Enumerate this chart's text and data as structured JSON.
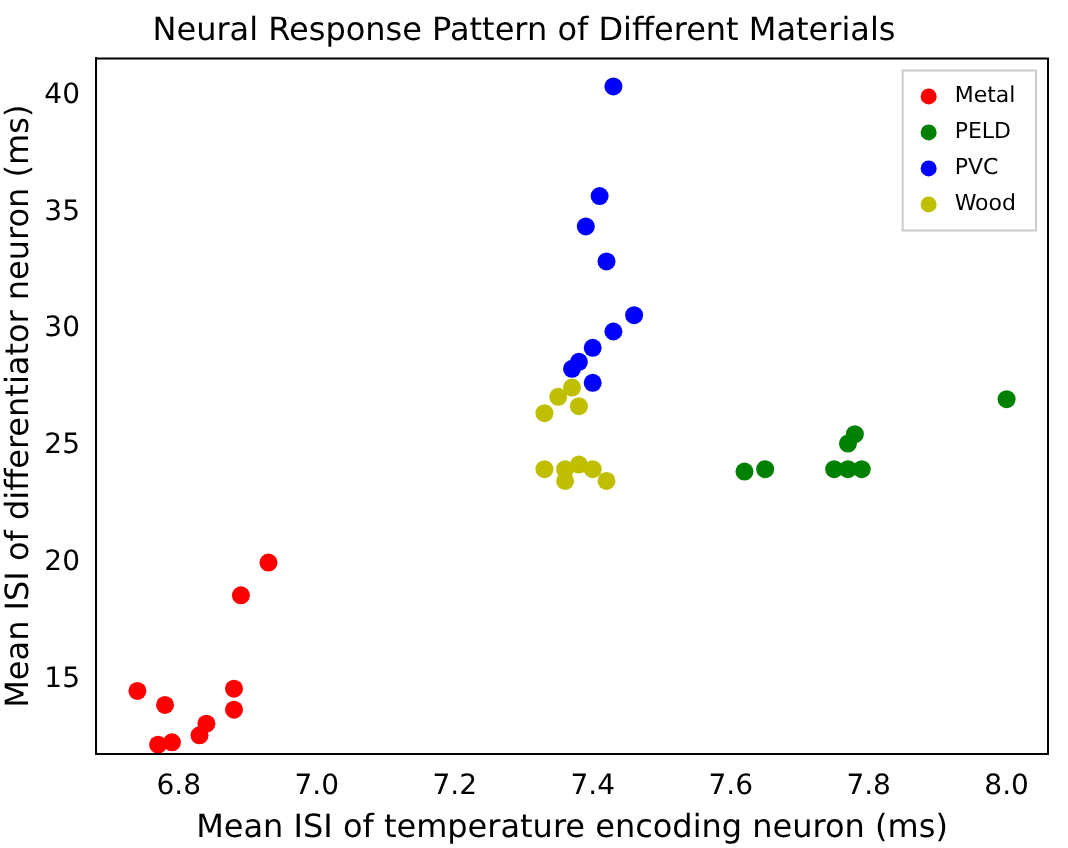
{
  "chart_data": {
    "type": "scatter",
    "title": "Neural Response Pattern of Different Materials",
    "xlabel": "Mean ISI of temperature encoding neuron (ms)",
    "ylabel": "Mean ISI of differentiator neuron (ms)",
    "xlim": [
      6.68,
      8.06
    ],
    "ylim": [
      11.8,
      41.6
    ],
    "xticks": [
      {
        "value": 6.8,
        "label": "6.8"
      },
      {
        "value": 7.0,
        "label": "7.0"
      },
      {
        "value": 7.2,
        "label": "7.2"
      },
      {
        "value": 7.4,
        "label": "7.4"
      },
      {
        "value": 7.6,
        "label": "7.6"
      },
      {
        "value": 7.8,
        "label": "7.8"
      },
      {
        "value": 8.0,
        "label": "8.0"
      }
    ],
    "yticks": [
      15,
      20,
      25,
      30,
      35,
      40
    ],
    "legend": "top right",
    "marker": "circle",
    "grid": false,
    "series": [
      {
        "name": "Metal",
        "color": "#ff0000",
        "x": [
          6.74,
          6.78,
          6.77,
          6.79,
          6.83,
          6.84,
          6.88,
          6.88,
          6.89,
          6.93
        ],
        "values": [
          14.5,
          13.9,
          12.2,
          12.3,
          12.6,
          13.1,
          14.6,
          13.7,
          18.6,
          20.0
        ]
      },
      {
        "name": "PELD",
        "color": "#008000",
        "x": [
          7.62,
          7.65,
          7.75,
          7.77,
          7.79,
          7.77,
          7.78,
          8.0
        ],
        "values": [
          23.9,
          24.0,
          24.0,
          24.0,
          24.0,
          25.1,
          25.5,
          27.0
        ]
      },
      {
        "name": "PVC",
        "color": "#0000ff",
        "x": [
          7.43,
          7.41,
          7.39,
          7.42,
          7.46,
          7.43,
          7.4,
          7.38,
          7.37,
          7.4
        ],
        "values": [
          40.4,
          35.7,
          34.4,
          32.9,
          30.6,
          29.9,
          29.2,
          28.6,
          28.3,
          27.7
        ]
      },
      {
        "name": "Wood",
        "color": "#bfbf00",
        "x": [
          7.37,
          7.35,
          7.38,
          7.33,
          7.33,
          7.36,
          7.38,
          7.4,
          7.36,
          7.42
        ],
        "values": [
          27.5,
          27.1,
          26.7,
          26.4,
          24.0,
          24.0,
          24.2,
          24.0,
          23.5,
          23.5
        ]
      }
    ]
  }
}
